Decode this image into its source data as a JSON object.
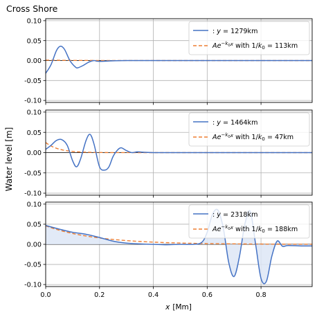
{
  "chart_data": {
    "title": "Cross Shore",
    "ylabel": "Water level [m]",
    "xlabel_pre": "x",
    "xlabel_unit": "[Mm]",
    "colors": {
      "series": "#4472c4",
      "fit": "#ed7d31",
      "fill": "#dde6f6"
    },
    "shared_x": {
      "xlim": [
        0.0,
        0.99
      ],
      "ticks": [
        0.0,
        0.2,
        0.4,
        0.6,
        0.8
      ],
      "tick_labels": [
        "0.0",
        "0.2",
        "0.4",
        "0.6",
        "0.8"
      ]
    },
    "panels": [
      {
        "type": "line",
        "ylim": [
          -0.105,
          0.105
        ],
        "yticks": [
          0.1,
          0.05,
          0.0,
          -0.05,
          -0.1
        ],
        "ytick_labels": [
          "0.10",
          "0.05",
          "0.00",
          "-0.05",
          "-0.10"
        ],
        "legend_position": "top-right",
        "series": [
          {
            "name": ": y = 1279km",
            "x": [
              0.0,
              0.02,
              0.04,
              0.055,
              0.07,
              0.09,
              0.11,
              0.12,
              0.14,
              0.16,
              0.18,
              0.2,
              0.3,
              0.6,
              0.99
            ],
            "y": [
              -0.032,
              -0.01,
              0.025,
              0.036,
              0.028,
              0.0,
              -0.016,
              -0.018,
              -0.012,
              -0.004,
              0.0,
              -0.002,
              0.0,
              0.0,
              0.0
            ]
          },
          {
            "name": "Ae^{-k0x} with 1/k0 = 113km",
            "fit": true,
            "A": 0.001,
            "scale": 0.113
          }
        ]
      },
      {
        "type": "line",
        "ylim": [
          -0.105,
          0.105
        ],
        "yticks": [
          0.1,
          0.05,
          0.0,
          -0.05,
          -0.1
        ],
        "ytick_labels": [
          "0.10",
          "0.05",
          "0.00",
          "-0.05",
          "-0.10"
        ],
        "legend_position": "top-right",
        "series": [
          {
            "name": ": y = 1464km",
            "x": [
              0.0,
              0.02,
              0.04,
              0.06,
              0.08,
              0.1,
              0.115,
              0.13,
              0.15,
              0.165,
              0.18,
              0.2,
              0.22,
              0.235,
              0.25,
              0.265,
              0.28,
              0.3,
              0.32,
              0.34,
              0.36,
              0.4,
              0.5,
              0.99
            ],
            "y": [
              0.008,
              0.018,
              0.03,
              0.032,
              0.018,
              -0.02,
              -0.035,
              -0.015,
              0.03,
              0.045,
              0.02,
              -0.035,
              -0.043,
              -0.035,
              -0.01,
              0.005,
              0.012,
              0.005,
              0.0,
              0.002,
              0.001,
              0.0,
              0.0,
              0.0
            ]
          },
          {
            "name": "Ae^{-k0x} with 1/k0 = 47km",
            "fit": true,
            "A": 0.025,
            "scale": 0.047
          }
        ]
      },
      {
        "type": "line",
        "fill": true,
        "ylim": [
          -0.105,
          0.105
        ],
        "yticks": [
          0.1,
          0.05,
          0.0,
          -0.05,
          -0.1
        ],
        "ytick_labels": [
          "0.10",
          "0.05",
          "0.00",
          "-0.05",
          "-0.10"
        ],
        "legend_position": "top-right",
        "series": [
          {
            "name": ": y = 2318km",
            "x": [
              0.0,
              0.05,
              0.1,
              0.15,
              0.2,
              0.25,
              0.3,
              0.35,
              0.4,
              0.45,
              0.5,
              0.55,
              0.58,
              0.6,
              0.62,
              0.64,
              0.66,
              0.68,
              0.7,
              0.72,
              0.74,
              0.76,
              0.78,
              0.8,
              0.82,
              0.84,
              0.86,
              0.88,
              0.9,
              0.95,
              0.99
            ],
            "y": [
              0.047,
              0.038,
              0.03,
              0.025,
              0.017,
              0.008,
              0.003,
              0.001,
              0.0,
              -0.001,
              0.0,
              0.0,
              0.005,
              0.03,
              0.075,
              0.085,
              0.04,
              -0.045,
              -0.08,
              -0.03,
              0.05,
              0.082,
              0.0,
              -0.085,
              -0.092,
              -0.03,
              0.008,
              -0.005,
              -0.003,
              -0.004,
              -0.004
            ]
          },
          {
            "name": "Ae^{-k0x} with 1/k0 = 188km",
            "fit": true,
            "A": 0.046,
            "scale": 0.188
          }
        ]
      }
    ]
  }
}
